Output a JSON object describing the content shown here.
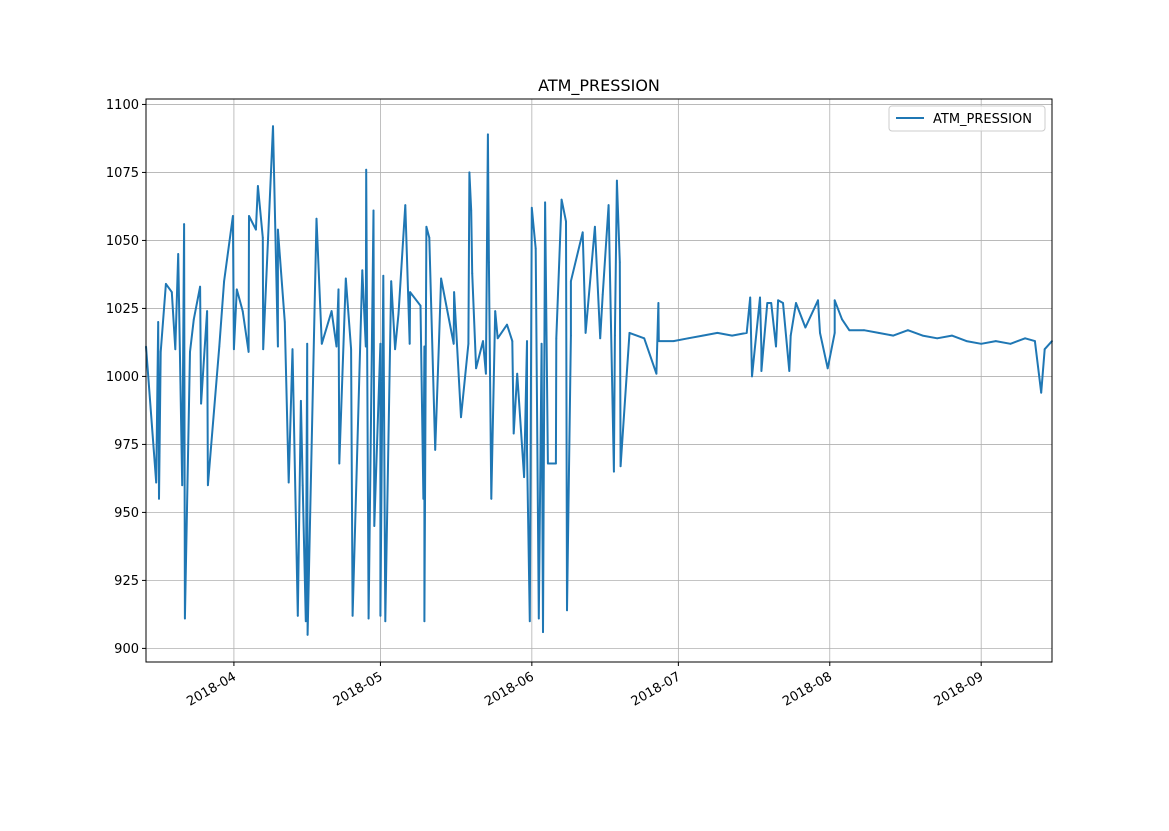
{
  "chart_data": {
    "type": "line",
    "title": "ATM_PRESSION",
    "xlabel": "",
    "ylabel": "",
    "xlim": [
      "2018-03-14T00:00",
      "2018-09-15T12:00"
    ],
    "ylim": [
      895,
      1102
    ],
    "yticks": [
      900,
      925,
      950,
      975,
      1000,
      1025,
      1050,
      1075,
      1100
    ],
    "xticks": [
      "2018-04",
      "2018-05",
      "2018-06",
      "2018-07",
      "2018-08",
      "2018-09"
    ],
    "grid": true,
    "legend": {
      "placement": "top-right",
      "entries": [
        "ATM_PRESSION"
      ]
    },
    "color": "#1f77b4",
    "series": [
      {
        "name": "ATM_PRESSION",
        "baseline": [
          [
            "2018-03-14T00",
            1011
          ],
          [
            "2018-03-17T00",
            1009
          ],
          [
            "2018-03-20T00",
            1010
          ],
          [
            "2018-03-23T00",
            1009
          ],
          [
            "2018-03-26T00",
            1010
          ],
          [
            "2018-03-29T00",
            1011
          ],
          [
            "2018-04-01T00",
            1010
          ],
          [
            "2018-04-04T00",
            1009
          ],
          [
            "2018-04-07T00",
            1010
          ],
          [
            "2018-04-10T00",
            1011
          ],
          [
            "2018-04-13T00",
            1010
          ],
          [
            "2018-04-16T00",
            1012
          ],
          [
            "2018-04-19T00",
            1012
          ],
          [
            "2018-04-22T00",
            1011
          ],
          [
            "2018-04-25T00",
            1010
          ],
          [
            "2018-04-28T00",
            1011
          ],
          [
            "2018-05-01T00",
            1012
          ],
          [
            "2018-05-04T00",
            1010
          ],
          [
            "2018-05-07T00",
            1012
          ],
          [
            "2018-05-10T00",
            1011
          ],
          [
            "2018-05-13T00",
            1013
          ],
          [
            "2018-05-16T00",
            1012
          ],
          [
            "2018-05-19T00",
            1012
          ],
          [
            "2018-05-22T00",
            1013
          ],
          [
            "2018-05-25T00",
            1014
          ],
          [
            "2018-05-28T00",
            1013
          ],
          [
            "2018-05-31T00",
            1013
          ],
          [
            "2018-06-03T00",
            1012
          ],
          [
            "2018-06-06T00",
            1014
          ],
          [
            "2018-06-09T00",
            1015
          ],
          [
            "2018-06-12T00",
            1016
          ],
          [
            "2018-06-15T00",
            1014
          ],
          [
            "2018-06-18T00",
            1015
          ],
          [
            "2018-06-21T00",
            1016
          ],
          [
            "2018-06-24T00",
            1014
          ],
          [
            "2018-06-27T00",
            1013
          ],
          [
            "2018-06-30T00",
            1013
          ],
          [
            "2018-07-03T00",
            1014
          ],
          [
            "2018-07-06T00",
            1015
          ],
          [
            "2018-07-09T00",
            1016
          ],
          [
            "2018-07-12T00",
            1015
          ],
          [
            "2018-07-15T00",
            1016
          ],
          [
            "2018-07-18T00",
            1010
          ],
          [
            "2018-07-21T00",
            1011
          ],
          [
            "2018-07-24T00",
            1015
          ],
          [
            "2018-07-27T00",
            1018
          ],
          [
            "2018-07-30T00",
            1016
          ],
          [
            "2018-08-02T00",
            1016
          ],
          [
            "2018-08-05T00",
            1017
          ],
          [
            "2018-08-08T00",
            1017
          ],
          [
            "2018-08-11T00",
            1016
          ],
          [
            "2018-08-14T00",
            1015
          ],
          [
            "2018-08-17T00",
            1017
          ],
          [
            "2018-08-20T00",
            1015
          ],
          [
            "2018-08-23T00",
            1014
          ],
          [
            "2018-08-26T00",
            1015
          ],
          [
            "2018-08-29T00",
            1013
          ],
          [
            "2018-09-01T00",
            1012
          ],
          [
            "2018-09-04T00",
            1013
          ],
          [
            "2018-09-07T00",
            1012
          ],
          [
            "2018-09-10T00",
            1014
          ],
          [
            "2018-09-12T00",
            1013
          ],
          [
            "2018-09-14T00",
            1010
          ],
          [
            "2018-09-15T12",
            1013
          ]
        ],
        "spikes": [
          [
            "2018-03-16T02",
            961
          ],
          [
            "2018-03-16T12",
            1020
          ],
          [
            "2018-03-16T16",
            955
          ],
          [
            "2018-03-18T02",
            1034
          ],
          [
            "2018-03-19T07",
            1031
          ],
          [
            "2018-03-20T14",
            1045
          ],
          [
            "2018-03-21T10",
            960
          ],
          [
            "2018-03-21T19",
            1056
          ],
          [
            "2018-03-21T23",
            911
          ],
          [
            "2018-03-23T19",
            1021
          ],
          [
            "2018-03-25T02",
            1033
          ],
          [
            "2018-03-25T07",
            990
          ],
          [
            "2018-03-26T12",
            1024
          ],
          [
            "2018-03-26T16",
            960
          ],
          [
            "2018-03-30T00",
            1035
          ],
          [
            "2018-03-31T19",
            1059
          ],
          [
            "2018-04-01T14",
            1032
          ],
          [
            "2018-04-02T19",
            1024
          ],
          [
            "2018-04-04T02",
            1059
          ],
          [
            "2018-04-05T12",
            1054
          ],
          [
            "2018-04-05T22",
            1070
          ],
          [
            "2018-04-06T22",
            1051
          ],
          [
            "2018-04-09T00",
            1092
          ],
          [
            "2018-04-10T00",
            1054
          ],
          [
            "2018-04-11T10",
            1020
          ],
          [
            "2018-04-12T05",
            961
          ],
          [
            "2018-04-14T02",
            912
          ],
          [
            "2018-04-14T17",
            991
          ],
          [
            "2018-04-15T02",
            960
          ],
          [
            "2018-04-15T17",
            910
          ],
          [
            "2018-04-16T02",
            905
          ],
          [
            "2018-04-17T22",
            1058
          ],
          [
            "2018-04-21T00",
            1024
          ],
          [
            "2018-04-22T10",
            1032
          ],
          [
            "2018-04-22T14",
            968
          ],
          [
            "2018-04-23T22",
            1036
          ],
          [
            "2018-04-25T07",
            912
          ],
          [
            "2018-04-27T07",
            1039
          ],
          [
            "2018-04-28T02",
            1076
          ],
          [
            "2018-04-28T14",
            911
          ],
          [
            "2018-04-29T14",
            1061
          ],
          [
            "2018-04-29T18",
            945
          ],
          [
            "2018-05-01T00",
            912
          ],
          [
            "2018-05-01T14",
            1037
          ],
          [
            "2018-05-02T00",
            910
          ],
          [
            "2018-05-03T05",
            1035
          ],
          [
            "2018-05-04T17",
            1023
          ],
          [
            "2018-05-06T02",
            1063
          ],
          [
            "2018-05-07T02",
            1031
          ],
          [
            "2018-05-09T05",
            1026
          ],
          [
            "2018-05-09T19",
            955
          ],
          [
            "2018-05-10T00",
            910
          ],
          [
            "2018-05-10T10",
            1055
          ],
          [
            "2018-05-11T00",
            1051
          ],
          [
            "2018-05-12T05",
            973
          ],
          [
            "2018-05-13T10",
            1036
          ],
          [
            "2018-05-16T02",
            1031
          ],
          [
            "2018-05-17T12",
            985
          ],
          [
            "2018-05-19T05",
            1075
          ],
          [
            "2018-05-19T14",
            1061
          ],
          [
            "2018-05-19T19",
            1038
          ],
          [
            "2018-05-20T14",
            1003
          ],
          [
            "2018-05-22T14",
            1001
          ],
          [
            "2018-05-23T00",
            1089
          ],
          [
            "2018-05-23T05",
            1042
          ],
          [
            "2018-05-23T17",
            955
          ],
          [
            "2018-05-24T12",
            1024
          ],
          [
            "2018-05-26T22",
            1019
          ],
          [
            "2018-05-28T07",
            979
          ],
          [
            "2018-05-29T00",
            1001
          ],
          [
            "2018-05-30T10",
            963
          ],
          [
            "2018-05-31T00",
            973
          ],
          [
            "2018-05-31T14",
            910
          ],
          [
            "2018-06-01T00",
            1062
          ],
          [
            "2018-06-01T19",
            1047
          ],
          [
            "2018-06-02T10",
            911
          ],
          [
            "2018-06-03T07",
            906
          ],
          [
            "2018-06-03T17",
            1064
          ],
          [
            "2018-06-04T07",
            968
          ],
          [
            "2018-06-05T22",
            968
          ],
          [
            "2018-06-07T02",
            1065
          ],
          [
            "2018-06-08T00",
            1057
          ],
          [
            "2018-06-08T05",
            914
          ],
          [
            "2018-06-09T00",
            1035
          ],
          [
            "2018-06-11T10",
            1053
          ],
          [
            "2018-06-13T22",
            1055
          ],
          [
            "2018-06-15T12",
            1030
          ],
          [
            "2018-06-16T17",
            1063
          ],
          [
            "2018-06-17T19",
            965
          ],
          [
            "2018-06-18T10",
            1072
          ],
          [
            "2018-06-19T00",
            1042
          ],
          [
            "2018-06-19T04",
            967
          ],
          [
            "2018-06-26T12",
            1001
          ],
          [
            "2018-06-26T22",
            1027
          ],
          [
            "2018-07-15T17",
            1029
          ],
          [
            "2018-07-16T02",
            1000
          ],
          [
            "2018-07-17T17",
            1029
          ],
          [
            "2018-07-18T00",
            1002
          ],
          [
            "2018-07-19T05",
            1027
          ],
          [
            "2018-07-20T00",
            1027
          ],
          [
            "2018-07-21T10",
            1028
          ],
          [
            "2018-07-22T10",
            1027
          ],
          [
            "2018-07-23T17",
            1002
          ],
          [
            "2018-07-25T02",
            1027
          ],
          [
            "2018-07-29T14",
            1028
          ],
          [
            "2018-07-31T14",
            1003
          ],
          [
            "2018-08-02T00",
            1028
          ],
          [
            "2018-08-03T12",
            1021
          ],
          [
            "2018-09-13T07",
            994
          ]
        ]
      }
    ]
  }
}
